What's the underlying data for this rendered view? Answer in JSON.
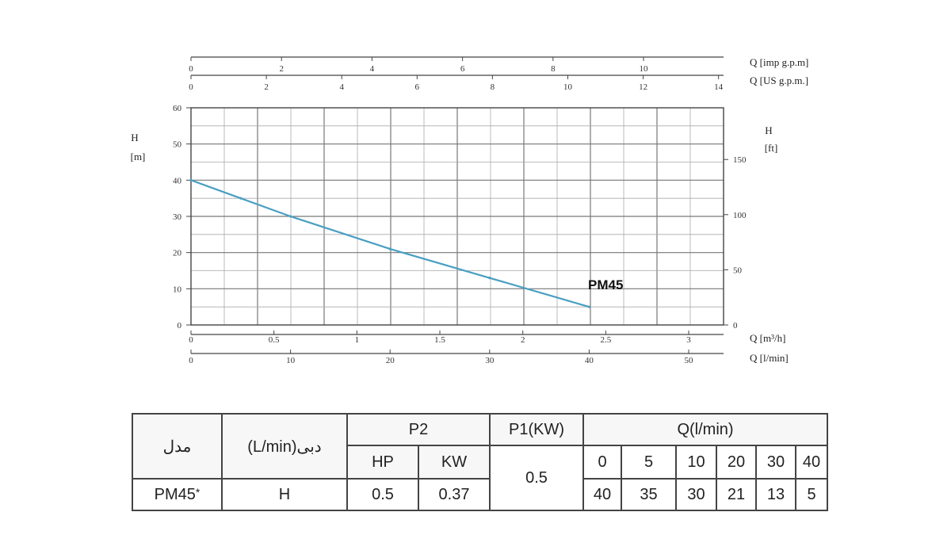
{
  "chart_data": {
    "type": "line",
    "series": [
      {
        "name": "PM45",
        "x": [
          0,
          5,
          10,
          20,
          30,
          40
        ],
        "y": [
          40,
          35,
          30,
          21,
          13,
          5
        ]
      }
    ],
    "x_axis": {
      "label": "Q [l/min]",
      "ticks": [
        "0",
        "10",
        "20",
        "30",
        "40",
        "50"
      ],
      "range": [
        0,
        53.5
      ]
    },
    "y_axis_left": {
      "label_line1": "H",
      "label_line2": "[m]",
      "ticks": [
        "0",
        "10",
        "20",
        "30",
        "40",
        "50",
        "60"
      ],
      "range": [
        0,
        60
      ]
    },
    "y_axis_right": {
      "label_line1": "H",
      "label_line2": "[ft]",
      "ticks": [
        "0",
        "50",
        "100",
        "150"
      ]
    },
    "top_axes": [
      {
        "label": "Q [imp g.p.m]",
        "ticks": [
          "0",
          "2",
          "4",
          "6",
          "8",
          "10"
        ]
      },
      {
        "label": "Q [US g.p.m.]",
        "ticks": [
          "0",
          "2",
          "4",
          "6",
          "8",
          "10",
          "12",
          "14"
        ]
      }
    ],
    "bottom_axis_m3h": {
      "label": "Q [m³/h]",
      "ticks": [
        "0",
        "0.5",
        "1",
        "1.5",
        "2",
        "2.5",
        "3"
      ]
    },
    "grid": true,
    "curve_label": "PM45"
  },
  "table": {
    "model_header": "مدل",
    "flow_header": "(L/min)دبی",
    "p2_header": "P2",
    "hp_header": "HP",
    "kw_header": "KW",
    "p1_header": "P1(KW)",
    "q_header": "Q(l/min)",
    "q_values": [
      "0",
      "5",
      "10",
      "20",
      "30",
      "40"
    ],
    "model": "PM45",
    "model_mark": "*",
    "flow": "H",
    "hp": "0.5",
    "kw": "0.37",
    "p1": "0.5",
    "h_values": [
      "40",
      "35",
      "30",
      "21",
      "13",
      "5"
    ]
  }
}
